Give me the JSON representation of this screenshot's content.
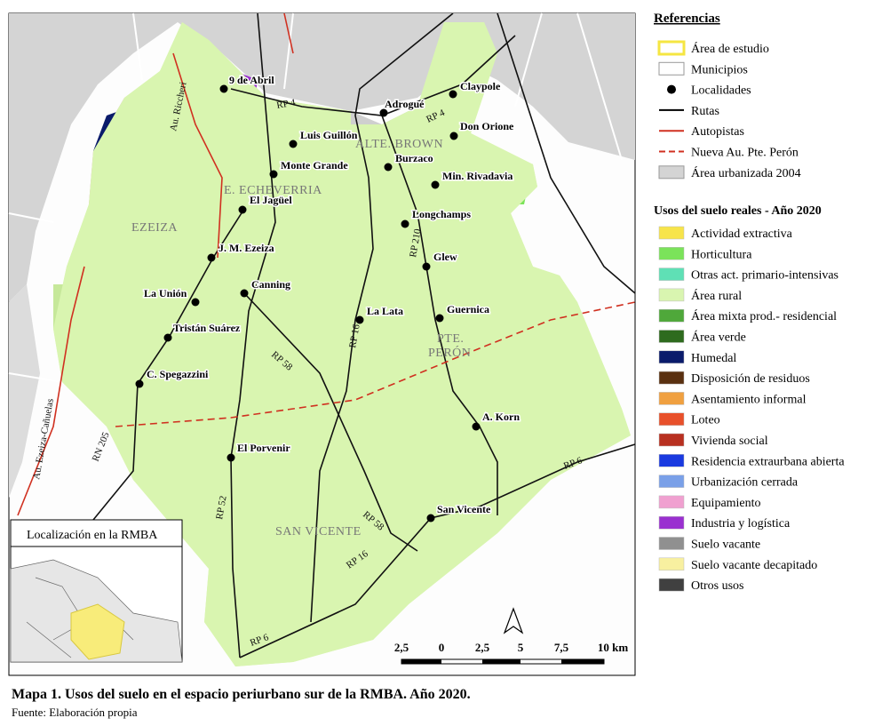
{
  "map": {
    "localities": [
      "9 de Abril",
      "Adrogué",
      "Claypole",
      "Luis Guillón",
      "Don Orione",
      "Monte Grande",
      "Burzaco",
      "Min. Rivadavia",
      "El Jagüel",
      "Longchamps",
      "J. M. Ezeiza",
      "Glew",
      "Canning",
      "La Unión",
      "La Lata",
      "Guernica",
      "Tristán Suárez",
      "C. Spegazzini",
      "A. Korn",
      "El Porvenir",
      "San Vicente"
    ],
    "municipalities": [
      "EZEIZA",
      "E. ECHEVERRIA",
      "ALTE. BROWN",
      "PTE.",
      "PERÓN",
      "SAN VICENTE"
    ],
    "routes": [
      "RP 4",
      "RP 4",
      "RP 210",
      "RP 16",
      "RP 58",
      "RP 52",
      "RP 58",
      "RP 16",
      "RP 6",
      "RP 6",
      "RN 205",
      "Au. Riccheri",
      "Au. Ezeiza-Cañuelas"
    ],
    "inset_title": "Localización en la RMBA",
    "scale_labels": [
      "2,5",
      "0",
      "2,5",
      "5",
      "7,5",
      "10 km"
    ]
  },
  "legend": {
    "title": "Referencias",
    "items": [
      {
        "label": "Área de estudio",
        "symbol": "outline",
        "color": "#f5e642"
      },
      {
        "label": "Municipios",
        "symbol": "box",
        "color": "#ffffff"
      },
      {
        "label": "Localidades",
        "symbol": "dot",
        "color": "#000000"
      },
      {
        "label": "Rutas",
        "symbol": "line",
        "color": "#000000"
      },
      {
        "label": "Autopistas",
        "symbol": "line",
        "color": "#d03020"
      },
      {
        "label": "Nueva Au. Pte. Perón",
        "symbol": "dash",
        "color": "#d03020"
      },
      {
        "label": "Área urbanizada 2004",
        "symbol": "box",
        "color": "#d4d4d4"
      }
    ],
    "uses_title": "Usos del suelo reales - Año 2020",
    "uses": [
      {
        "label": "Actividad extractiva",
        "color": "#f7e44a"
      },
      {
        "label": "Horticultura",
        "color": "#7be35a"
      },
      {
        "label": "Otras act. primario-intensivas",
        "color": "#5fe0b5"
      },
      {
        "label": "Área rural",
        "color": "#d9f5b0"
      },
      {
        "label": "Área mixta prod.- residencial",
        "color": "#4fa83a"
      },
      {
        "label": "Área verde",
        "color": "#2e6b1e"
      },
      {
        "label": "Humedal",
        "color": "#0a1b6b"
      },
      {
        "label": "Disposición de residuos",
        "color": "#5a3010"
      },
      {
        "label": "Asentamiento informal",
        "color": "#f0a040"
      },
      {
        "label": "Loteo",
        "color": "#e8502a"
      },
      {
        "label": "Vivienda social",
        "color": "#b83020"
      },
      {
        "label": "Residencia extraurbana abierta",
        "color": "#1a3ae0"
      },
      {
        "label": "Urbanización cerrada",
        "color": "#7aa0e8"
      },
      {
        "label": "Equipamiento",
        "color": "#f0a0d0"
      },
      {
        "label": "Industria y logística",
        "color": "#9a30d0"
      },
      {
        "label": "Suelo vacante",
        "color": "#909090"
      },
      {
        "label": "Suelo vacante decapitado",
        "color": "#f8f0a0"
      },
      {
        "label": "Otros usos",
        "color": "#404040"
      }
    ]
  },
  "caption": {
    "title": "Mapa 1. Usos del suelo en el espacio periurbano sur de la RMBA. Año 2020.",
    "source": "Fuente: Elaboración propia"
  }
}
